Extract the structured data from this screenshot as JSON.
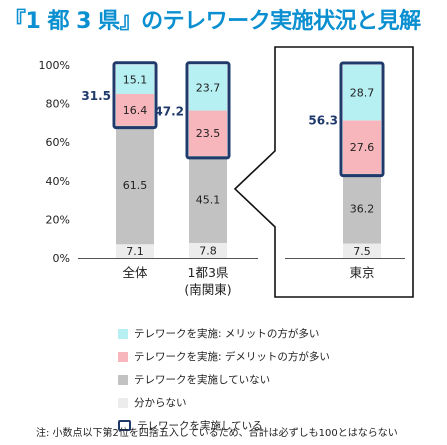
{
  "title": "『1 都 3 県』のテレワーク実施状況と見解",
  "colors": {
    "merit": "#b6f0f2",
    "demerit": "#f6b6bb",
    "not_implemented": "#c2c2c2",
    "unknown": "#ececec",
    "outline": "#1f3a6b",
    "title": "#0a8fd0"
  },
  "chart_data": {
    "type": "bar",
    "stacked": true,
    "categories": [
      "全体",
      "1都3県",
      "東京"
    ],
    "category_sublabels": [
      "",
      "(南関東)",
      ""
    ],
    "ylim": [
      0,
      100
    ],
    "yticks": [
      "0%",
      "20%",
      "40%",
      "60%",
      "80%",
      "100%"
    ],
    "grid": false,
    "series": [
      {
        "name": "分からない",
        "color_key": "unknown",
        "values": [
          7.1,
          7.8,
          7.5
        ]
      },
      {
        "name": "テレワークを実施していない",
        "color_key": "not_implemented",
        "values": [
          61.5,
          45.1,
          36.2
        ]
      },
      {
        "name": "テレワークを実施: デメリットの方が多い",
        "color_key": "demerit",
        "values": [
          16.4,
          23.5,
          27.6
        ]
      },
      {
        "name": "テレワークを実施: メリットの方が多い",
        "color_key": "merit",
        "values": [
          15.1,
          23.7,
          28.7
        ]
      }
    ],
    "totals_implemented": [
      31.5,
      47.2,
      56.3
    ],
    "outline_label": "テレワークを実施している",
    "callout_from": "1都3県",
    "callout_to": "東京"
  },
  "legend": [
    {
      "label": "テレワークを実施: メリットの方が多い",
      "color_key": "merit"
    },
    {
      "label": "テレワークを実施: デメリットの方が多い",
      "color_key": "demerit"
    },
    {
      "label": "テレワークを実施していない",
      "color_key": "not_implemented"
    },
    {
      "label": "分からない",
      "color_key": "unknown"
    },
    {
      "label": "テレワークを実施している",
      "outline": true
    }
  ],
  "note": "注: 小数点以下第2位を四捨五入しているため、合計は必ずしも100とはならない"
}
